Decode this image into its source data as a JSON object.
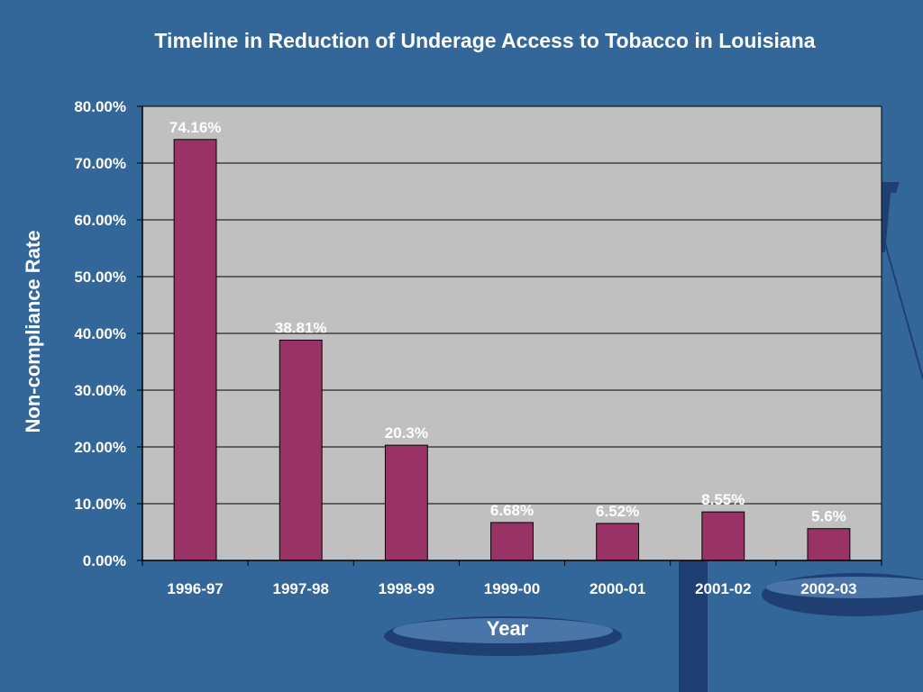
{
  "colors": {
    "background": "#336699",
    "plot_area": "#c0c0c0",
    "bar": "#993366",
    "text": "#ffffff",
    "scale_decoration": "#1f3f73"
  },
  "chart_data": {
    "type": "bar",
    "title": "Timeline in Reduction of Underage Access to Tobacco in Louisiana",
    "xlabel": "Year",
    "ylabel": "Non-compliance Rate",
    "categories": [
      "1996-97",
      "1997-98",
      "1998-99",
      "1999-00",
      "2000-01",
      "2001-02",
      "2002-03"
    ],
    "values": [
      74.16,
      38.81,
      20.3,
      6.68,
      6.52,
      8.55,
      5.6
    ],
    "data_labels": [
      "74.16%",
      "38.81%",
      "20.3%",
      "6.68%",
      "6.52%",
      "8.55%",
      "5.6%"
    ],
    "ylim": [
      0,
      80
    ],
    "yticks": [
      0,
      10,
      20,
      30,
      40,
      50,
      60,
      70,
      80
    ],
    "ytick_labels": [
      "0.00%",
      "10.00%",
      "20.00%",
      "30.00%",
      "40.00%",
      "50.00%",
      "60.00%",
      "70.00%",
      "80.00%"
    ],
    "grid": true,
    "legend": "none"
  }
}
